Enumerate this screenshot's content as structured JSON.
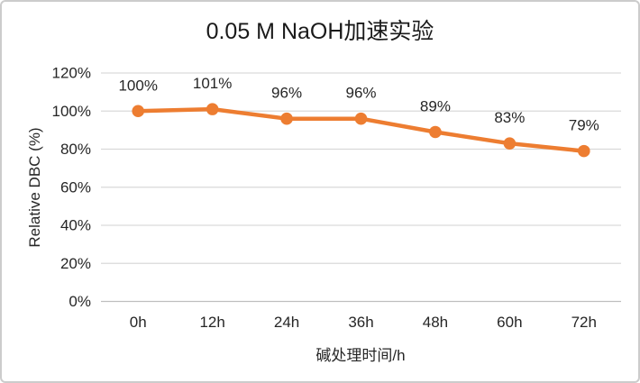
{
  "chart_data": {
    "type": "line",
    "title": "0.05 M NaOH加速实验",
    "xlabel": "碱处理时间/h",
    "ylabel": "Relative DBC (%)",
    "categories": [
      "0h",
      "12h",
      "24h",
      "36h",
      "48h",
      "60h",
      "72h"
    ],
    "series": [
      {
        "name": "Relative DBC",
        "values": [
          100,
          101,
          96,
          96,
          89,
          83,
          79
        ],
        "data_labels": [
          "100%",
          "101%",
          "96%",
          "96%",
          "89%",
          "83%",
          "79%"
        ],
        "color": "#ED7D31"
      }
    ],
    "ylim": [
      0,
      120
    ],
    "y_tick_step": 20,
    "y_tick_labels": [
      "0%",
      "20%",
      "40%",
      "60%",
      "80%",
      "100%",
      "120%"
    ],
    "grid": true,
    "legend": "none",
    "colors": {
      "gridline": "#D9D9D9",
      "axis_line": "#BFBFBF",
      "text": "#262626",
      "title_text": "#1A1A1A",
      "background": "#FFFFFF",
      "card_border": "#CCCCCC"
    }
  }
}
